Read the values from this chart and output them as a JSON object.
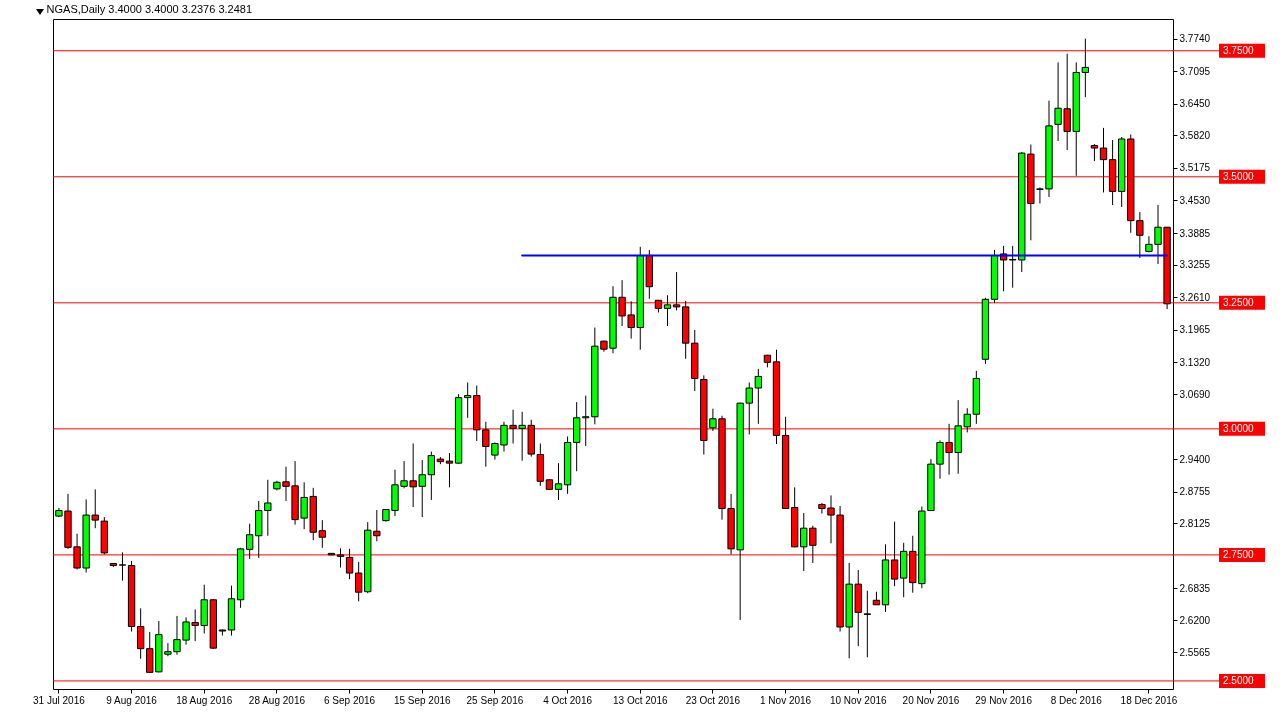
{
  "chart_data": {
    "type": "candlestick",
    "title": "NGAS,Daily  3.4000 3.4000 3.2376 3.2481",
    "categories": [
      "31 Jul 2016",
      null,
      null,
      null,
      null,
      null,
      null,
      null,
      "9 Aug 2016",
      null,
      null,
      null,
      null,
      null,
      null,
      null,
      "18 Aug 2016",
      null,
      null,
      null,
      null,
      null,
      null,
      null,
      "28 Aug 2016",
      null,
      null,
      null,
      null,
      null,
      null,
      null,
      "6 Sep 2016",
      null,
      null,
      null,
      null,
      null,
      null,
      null,
      "15 Sep 2016",
      null,
      null,
      null,
      null,
      null,
      null,
      null,
      "25 Sep 2016",
      null,
      null,
      null,
      null,
      null,
      null,
      null,
      "4 Oct 2016",
      null,
      null,
      null,
      null,
      null,
      null,
      null,
      "13 Oct 2016",
      null,
      null,
      null,
      null,
      null,
      null,
      null,
      "23 Oct 2016",
      null,
      null,
      null,
      null,
      null,
      null,
      null,
      "1 Nov 2016",
      null,
      null,
      null,
      null,
      null,
      null,
      null,
      "10 Nov 2016",
      null,
      null,
      null,
      null,
      null,
      null,
      null,
      "20 Nov 2016",
      null,
      null,
      null,
      null,
      null,
      null,
      null,
      "29 Nov 2016",
      null,
      null,
      null,
      null,
      null,
      null,
      null,
      "8 Dec 2016",
      null,
      null,
      null,
      null,
      null,
      null,
      null,
      "18 Dec 2016",
      null,
      null
    ],
    "ohlc": [
      [
        2.827,
        2.843,
        2.825,
        2.838
      ],
      [
        2.837,
        2.871,
        2.762,
        2.765
      ],
      [
        2.766,
        2.792,
        2.721,
        2.724
      ],
      [
        2.724,
        2.86,
        2.715,
        2.829
      ],
      [
        2.829,
        2.88,
        2.803,
        2.819
      ],
      [
        2.817,
        2.825,
        2.751,
        2.754
      ],
      [
        2.733,
        2.734,
        2.726,
        2.729
      ],
      [
        2.73,
        2.755,
        2.699,
        2.73
      ],
      [
        2.729,
        2.738,
        2.598,
        2.608
      ],
      [
        2.608,
        2.644,
        2.544,
        2.564
      ],
      [
        2.564,
        2.597,
        2.516,
        2.517
      ],
      [
        2.518,
        2.619,
        2.517,
        2.592
      ],
      [
        2.553,
        2.575,
        2.549,
        2.558
      ],
      [
        2.558,
        2.629,
        2.552,
        2.582
      ],
      [
        2.581,
        2.626,
        2.572,
        2.617
      ],
      [
        2.616,
        2.642,
        2.579,
        2.61
      ],
      [
        2.61,
        2.691,
        2.594,
        2.661
      ],
      [
        2.661,
        2.662,
        2.564,
        2.565
      ],
      [
        2.601,
        2.602,
        2.59,
        2.599
      ],
      [
        2.601,
        2.689,
        2.59,
        2.663
      ],
      [
        2.661,
        2.764,
        2.645,
        2.762
      ],
      [
        2.761,
        2.812,
        2.742,
        2.79
      ],
      [
        2.788,
        2.857,
        2.744,
        2.838
      ],
      [
        2.838,
        2.899,
        2.788,
        2.853
      ],
      [
        2.881,
        2.897,
        2.878,
        2.894
      ],
      [
        2.895,
        2.925,
        2.857,
        2.886
      ],
      [
        2.887,
        2.936,
        2.81,
        2.82
      ],
      [
        2.823,
        2.894,
        2.801,
        2.864
      ],
      [
        2.866,
        2.883,
        2.779,
        2.795
      ],
      [
        2.798,
        2.819,
        2.764,
        2.785
      ],
      [
        2.753,
        2.753,
        2.75,
        2.75
      ],
      [
        2.75,
        2.763,
        2.725,
        2.747
      ],
      [
        2.745,
        2.762,
        2.702,
        2.714
      ],
      [
        2.714,
        2.736,
        2.658,
        2.676
      ],
      [
        2.677,
        2.815,
        2.674,
        2.799
      ],
      [
        2.797,
        2.839,
        2.777,
        2.788
      ],
      [
        2.818,
        2.841,
        2.816,
        2.84
      ],
      [
        2.838,
        2.919,
        2.827,
        2.889
      ],
      [
        2.886,
        2.936,
        2.882,
        2.897
      ],
      [
        2.897,
        2.971,
        2.845,
        2.885
      ],
      [
        2.886,
        2.938,
        2.825,
        2.909
      ],
      [
        2.909,
        2.955,
        2.859,
        2.947
      ],
      [
        2.94,
        2.944,
        2.93,
        2.935
      ],
      [
        2.936,
        2.952,
        2.884,
        2.932
      ],
      [
        2.932,
        3.069,
        2.931,
        3.062
      ],
      [
        3.062,
        3.092,
        3.022,
        3.066
      ],
      [
        3.066,
        3.086,
        2.976,
        2.998
      ],
      [
        2.998,
        3.014,
        2.925,
        2.965
      ],
      [
        2.948,
        2.973,
        2.939,
        2.971
      ],
      [
        2.968,
        3.014,
        2.955,
        3.007
      ],
      [
        3.007,
        3.038,
        2.971,
        3.001
      ],
      [
        3.001,
        3.034,
        2.937,
        3.007
      ],
      [
        3.007,
        3.018,
        2.945,
        2.95
      ],
      [
        2.949,
        2.971,
        2.887,
        2.896
      ],
      [
        2.899,
        2.9,
        2.879,
        2.88
      ],
      [
        2.88,
        2.932,
        2.859,
        2.891
      ],
      [
        2.889,
        2.985,
        2.871,
        2.973
      ],
      [
        2.973,
        3.053,
        2.916,
        3.022
      ],
      [
        3.022,
        3.066,
        2.966,
        3.024
      ],
      [
        3.024,
        3.201,
        3.009,
        3.164
      ],
      [
        3.174,
        3.175,
        3.153,
        3.158
      ],
      [
        3.16,
        3.283,
        3.15,
        3.261
      ],
      [
        3.261,
        3.295,
        3.204,
        3.224
      ],
      [
        3.226,
        3.253,
        3.179,
        3.201
      ],
      [
        3.201,
        3.361,
        3.157,
        3.344
      ],
      [
        3.344,
        3.355,
        3.258,
        3.282
      ],
      [
        3.255,
        3.256,
        3.231,
        3.239
      ],
      [
        3.239,
        3.265,
        3.204,
        3.246
      ],
      [
        3.246,
        3.311,
        3.235,
        3.242
      ],
      [
        3.242,
        3.254,
        3.139,
        3.17
      ],
      [
        3.17,
        3.196,
        3.075,
        3.1
      ],
      [
        3.098,
        3.106,
        2.949,
        2.977
      ],
      [
        3.002,
        3.04,
        2.996,
        3.02
      ],
      [
        3.02,
        3.026,
        2.82,
        2.842
      ],
      [
        2.842,
        2.871,
        2.751,
        2.762
      ],
      [
        2.76,
        3.052,
        2.621,
        3.051
      ],
      [
        3.051,
        3.092,
        2.989,
        3.081
      ],
      [
        3.081,
        3.119,
        3.01,
        3.104
      ],
      [
        3.146,
        3.147,
        3.122,
        3.132
      ],
      [
        3.133,
        3.157,
        2.97,
        2.987
      ],
      [
        2.987,
        3.024,
        2.841,
        2.842
      ],
      [
        2.844,
        2.884,
        2.765,
        2.766
      ],
      [
        2.766,
        2.833,
        2.718,
        2.803
      ],
      [
        2.803,
        2.808,
        2.734,
        2.769
      ],
      [
        2.85,
        2.853,
        2.832,
        2.842
      ],
      [
        2.843,
        2.868,
        2.773,
        2.829
      ],
      [
        2.829,
        2.847,
        2.598,
        2.607
      ],
      [
        2.607,
        2.734,
        2.545,
        2.692
      ],
      [
        2.692,
        2.72,
        2.569,
        2.636
      ],
      [
        2.633,
        2.679,
        2.547,
        2.632
      ],
      [
        2.66,
        2.677,
        2.651,
        2.651
      ],
      [
        2.651,
        2.771,
        2.637,
        2.74
      ],
      [
        2.74,
        2.816,
        2.688,
        2.702
      ],
      [
        2.704,
        2.774,
        2.666,
        2.757
      ],
      [
        2.757,
        2.788,
        2.675,
        2.695
      ],
      [
        2.693,
        2.846,
        2.684,
        2.837
      ],
      [
        2.838,
        2.94,
        2.837,
        2.93
      ],
      [
        2.93,
        2.977,
        2.901,
        2.973
      ],
      [
        2.973,
        3.01,
        2.909,
        2.953
      ],
      [
        2.953,
        3.057,
        2.911,
        3.006
      ],
      [
        3.004,
        3.041,
        2.993,
        3.029
      ],
      [
        3.029,
        3.115,
        3.01,
        3.1
      ],
      [
        3.138,
        3.26,
        3.129,
        3.257
      ],
      [
        3.257,
        3.355,
        3.25,
        3.344
      ],
      [
        3.347,
        3.363,
        3.273,
        3.335
      ],
      [
        3.336,
        3.363,
        3.28,
        3.335
      ],
      [
        3.335,
        3.549,
        3.311,
        3.547
      ],
      [
        3.545,
        3.564,
        3.374,
        3.447
      ],
      [
        3.475,
        3.479,
        3.447,
        3.476
      ],
      [
        3.476,
        3.651,
        3.46,
        3.601
      ],
      [
        3.604,
        3.727,
        3.571,
        3.636
      ],
      [
        3.635,
        3.744,
        3.553,
        3.59
      ],
      [
        3.59,
        3.727,
        3.502,
        3.707
      ],
      [
        3.707,
        3.774,
        3.658,
        3.717
      ],
      [
        3.562,
        3.565,
        3.531,
        3.557
      ],
      [
        3.557,
        3.597,
        3.469,
        3.534
      ],
      [
        3.534,
        3.573,
        3.444,
        3.471
      ],
      [
        3.471,
        3.579,
        3.44,
        3.575
      ],
      [
        3.575,
        3.584,
        3.389,
        3.413
      ],
      [
        3.413,
        3.43,
        3.339,
        3.384
      ],
      [
        3.352,
        3.382,
        3.35,
        3.366
      ],
      [
        3.366,
        3.444,
        3.327,
        3.4
      ],
      [
        3.4,
        3.4,
        3.2376,
        3.2481
      ]
    ],
    "colors": [
      "#00ff00",
      "#ff0000",
      "#ff0000",
      "#00ff00",
      "#ff0000",
      "#ff0000",
      "#ff0000",
      "#000000",
      "#ff0000",
      "#ff0000",
      "#ff0000",
      "#00ff00",
      "#00ff00",
      "#00ff00",
      "#00ff00",
      "#ff0000",
      "#00ff00",
      "#ff0000",
      "#ff0000",
      "#00ff00",
      "#00ff00",
      "#00ff00",
      "#00ff00",
      "#00ff00",
      "#00ff00",
      "#ff0000",
      "#ff0000",
      "#00ff00",
      "#ff0000",
      "#ff0000",
      "#ff0000",
      "#ff0000",
      "#ff0000",
      "#ff0000",
      "#00ff00",
      "#ff0000",
      "#00ff00",
      "#00ff00",
      "#00ff00",
      "#ff0000",
      "#00ff00",
      "#00ff00",
      "#ff0000",
      "#ff0000",
      "#00ff00",
      "#00ff00",
      "#ff0000",
      "#ff0000",
      "#00ff00",
      "#00ff00",
      "#ff0000",
      "#00ff00",
      "#ff0000",
      "#ff0000",
      "#ff0000",
      "#00ff00",
      "#00ff00",
      "#00ff00",
      "#00ff00",
      "#00ff00",
      "#ff0000",
      "#00ff00",
      "#ff0000",
      "#ff0000",
      "#00ff00",
      "#ff0000",
      "#ff0000",
      "#00ff00",
      "#ff0000",
      "#ff0000",
      "#ff0000",
      "#ff0000",
      "#00ff00",
      "#ff0000",
      "#ff0000",
      "#00ff00",
      "#00ff00",
      "#00ff00",
      "#ff0000",
      "#ff0000",
      "#ff0000",
      "#ff0000",
      "#00ff00",
      "#ff0000",
      "#ff0000",
      "#ff0000",
      "#ff0000",
      "#00ff00",
      "#ff0000",
      "#ff0000",
      "#ff0000",
      "#00ff00",
      "#ff0000",
      "#00ff00",
      "#ff0000",
      "#00ff00",
      "#00ff00",
      "#00ff00",
      "#ff0000",
      "#00ff00",
      "#00ff00",
      "#00ff00",
      "#00ff00",
      "#00ff00",
      "#ff0000",
      "#ff0000",
      "#00ff00",
      "#ff0000",
      "#00ff00",
      "#00ff00",
      "#00ff00",
      "#ff0000",
      "#00ff00",
      "#00ff00",
      "#ff0000",
      "#ff0000",
      "#ff0000",
      "#00ff00",
      "#ff0000",
      "#ff0000",
      "#00ff00",
      "#00ff00",
      "#ff0000"
    ],
    "series": [
      {
        "type": "line",
        "color": "#0000ff",
        "values": [
          null,
          null,
          null,
          null,
          null,
          null,
          null,
          null,
          null,
          null,
          null,
          null,
          null,
          null,
          null,
          null,
          null,
          null,
          null,
          null,
          null,
          null,
          null,
          null,
          null,
          null,
          null,
          null,
          null,
          null,
          null,
          null,
          null,
          null,
          null,
          null,
          null,
          null,
          null,
          null,
          null,
          null,
          null,
          null,
          null,
          null,
          null,
          null,
          null,
          null,
          null,
          3.344,
          3.344,
          3.344,
          3.344,
          3.344,
          3.344,
          3.344,
          3.344,
          3.344,
          3.344,
          3.344,
          3.344,
          3.344,
          3.344,
          3.344,
          3.344,
          3.344,
          3.344,
          3.344,
          3.344,
          3.344,
          3.344,
          3.344,
          3.344,
          3.344,
          3.344,
          3.344,
          3.344,
          3.344,
          3.344,
          3.344,
          3.344,
          3.344,
          3.344,
          3.344,
          3.344,
          3.344,
          3.344,
          3.344,
          3.344,
          3.344,
          3.344,
          3.344,
          3.344,
          3.344,
          3.344,
          3.344,
          3.344,
          3.344,
          3.344,
          3.344,
          3.344,
          3.344,
          3.344,
          3.344,
          3.344,
          3.344,
          3.344,
          3.344,
          3.344,
          3.344,
          3.344,
          3.344,
          3.344,
          3.344,
          3.344,
          3.344,
          3.344,
          3.344,
          3.344,
          3.344,
          3.344
        ]
      }
    ],
    "ylim": [
      2.484,
      3.813
    ],
    "yticks": [
      {
        "value": 2.5565,
        "label": "2.5565"
      },
      {
        "value": 2.62,
        "label": "2.6200"
      },
      {
        "value": 2.6835,
        "label": "2.6835"
      },
      {
        "value": 2.8125,
        "label": "2.8125"
      },
      {
        "value": 2.8755,
        "label": "2.8755"
      },
      {
        "value": 2.94,
        "label": "2.9400"
      },
      {
        "value": 3.069,
        "label": "3.0690"
      },
      {
        "value": 3.132,
        "label": "3.1320"
      },
      {
        "value": 3.1965,
        "label": "3.1965"
      },
      {
        "value": 3.261,
        "label": "3.2610"
      },
      {
        "value": 3.3255,
        "label": "3.3255"
      },
      {
        "value": 3.3885,
        "label": "3.3885"
      },
      {
        "value": 3.453,
        "label": "3.4530"
      },
      {
        "value": 3.5175,
        "label": "3.5175"
      },
      {
        "value": 3.582,
        "label": "3.5820"
      },
      {
        "value": 3.645,
        "label": "3.6450"
      },
      {
        "value": 3.7095,
        "label": "3.7095"
      },
      {
        "value": 3.774,
        "label": "3.7740"
      }
    ],
    "ref_lines": [
      {
        "axis": "y",
        "value": 3.75,
        "label": "3.7500",
        "color": "#ff0000"
      },
      {
        "axis": "y",
        "value": 3.5,
        "label": "3.5000",
        "color": "#ff0000"
      },
      {
        "axis": "y",
        "value": 3.25,
        "label": "3.2500",
        "color": "#ff0000"
      },
      {
        "axis": "y",
        "value": 3.0,
        "label": "3.0000",
        "color": "#ff0000"
      },
      {
        "axis": "y",
        "value": 2.75,
        "label": "2.7500",
        "color": "#ff0000"
      },
      {
        "axis": "y",
        "value": 2.5,
        "label": "2.5000",
        "color": "#ff0000"
      }
    ],
    "grid": false
  }
}
